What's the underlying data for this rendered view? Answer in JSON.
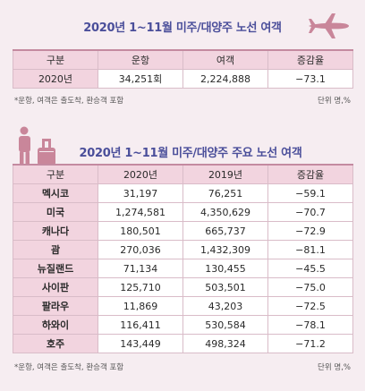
{
  "table1": {
    "title": "2020년 1~11월 미주/대양주 노선 여객",
    "headers": [
      "구분",
      "운항",
      "여객",
      "증감율"
    ],
    "rows": [
      [
        "2020년",
        "34,251회",
        "2,224,888",
        "−73.1"
      ]
    ],
    "note": "*운항, 여객은 출도착, 환승객 포함",
    "unit": "단위 명,%"
  },
  "table2": {
    "title": "2020년 1~11월 미주/대양주 주요 노선 여객",
    "headers": [
      "구분",
      "2020년",
      "2019년",
      "증감율"
    ],
    "rows": [
      [
        "멕시코",
        "31,197",
        "76,251",
        "−59.1"
      ],
      [
        "미국",
        "1,274,581",
        "4,350,629",
        "−70.7"
      ],
      [
        "캐나다",
        "180,501",
        "665,737",
        "−72.9"
      ],
      [
        "괌",
        "270,036",
        "1,432,309",
        "−81.1"
      ],
      [
        "뉴질랜드",
        "71,134",
        "130,455",
        "−45.5"
      ],
      [
        "사이판",
        "125,710",
        "503,501",
        "−75.0"
      ],
      [
        "팔라우",
        "11,869",
        "43,203",
        "−72.5"
      ],
      [
        "하와이",
        "116,411",
        "530,584",
        "−78.1"
      ],
      [
        "호주",
        "143,449",
        "498,324",
        "−71.2"
      ]
    ],
    "note": "*운항, 여객은 출도착, 환승객 포함",
    "unit": "단위 명,%"
  },
  "icons": {
    "plane": "airplane-icon",
    "traveler": "traveler-with-luggage-icon"
  },
  "colors": {
    "title": "#4a4e9a",
    "header_bg": "#f2d4df",
    "icon": "#c9869a",
    "page_bg": "#f6edf1"
  }
}
